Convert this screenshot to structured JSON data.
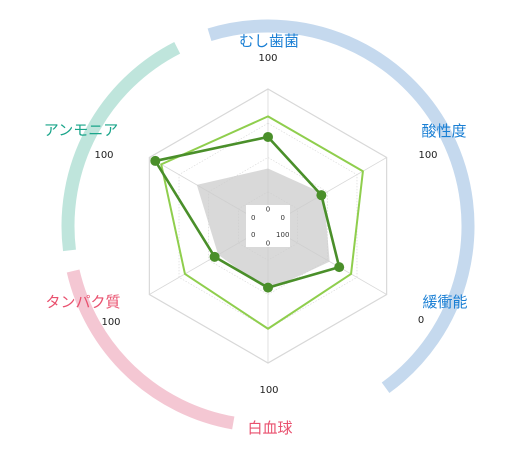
{
  "chart_data": {
    "type": "radar",
    "axes": [
      {
        "label": "むし歯菌",
        "color": "#1a7fd4",
        "max_label": "100"
      },
      {
        "label": "酸性度",
        "color": "#1a7fd4",
        "max_label": "100"
      },
      {
        "label": "緩衝能",
        "color": "#1a7fd4",
        "max_label": "0"
      },
      {
        "label": "白血球",
        "color": "#e9506e",
        "max_label": "100"
      },
      {
        "label": "タンパク質",
        "color": "#e9506e",
        "max_label": "100"
      },
      {
        "label": "アンモニア",
        "color": "#1aa58a",
        "max_label": "100"
      }
    ],
    "inner_ticks": [
      "0",
      "0",
      "100",
      "0",
      "0",
      "0"
    ],
    "rmax": 100,
    "series": [
      {
        "values": [
          65,
          45,
          60,
          45,
          45,
          95
        ],
        "color": "#4a8f2a",
        "style": "line-markers"
      },
      {
        "values": [
          80,
          80,
          70,
          75,
          70,
          90
        ],
        "color": "#8fce4d",
        "style": "line"
      },
      {
        "values": [
          42,
          47,
          52,
          47,
          42,
          60
        ],
        "color": "#cccccc",
        "style": "area"
      }
    ],
    "ring_arcs": [
      {
        "group": "blue",
        "color": "#c5d9ee"
      },
      {
        "group": "pink",
        "color": "#f4c7d3"
      },
      {
        "group": "green",
        "color": "#bfe5dc"
      }
    ],
    "grid_color": "#d8d8d8"
  }
}
